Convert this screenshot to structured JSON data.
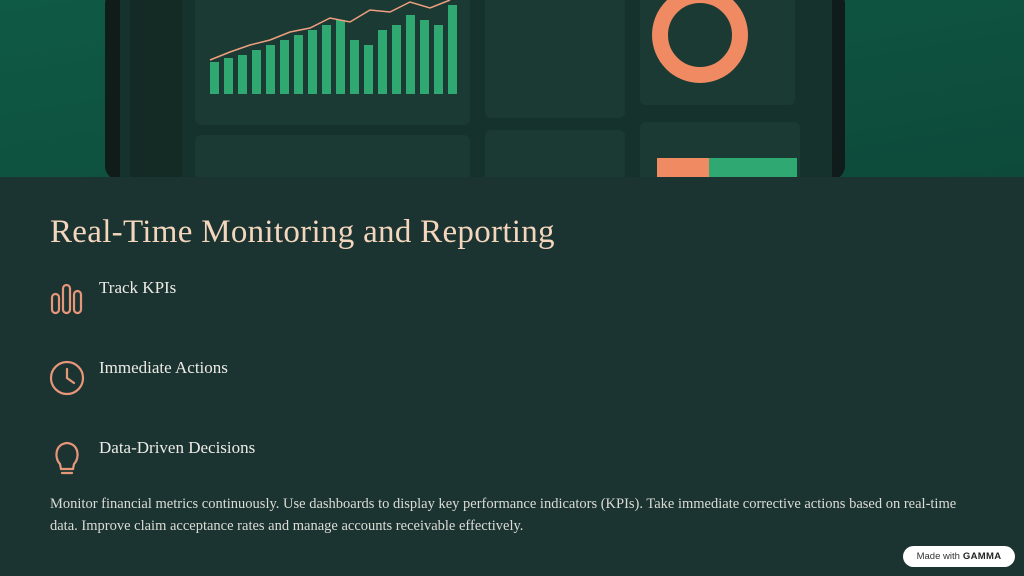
{
  "title": "Real-Time Monitoring and Reporting",
  "items": [
    {
      "label": "Track KPIs"
    },
    {
      "label": "Immediate Actions"
    },
    {
      "label": "Data-Driven Decisions"
    }
  ],
  "body": "Monitor financial metrics continuously. Use dashboards to display key performance indicators (KPIs). Take immediate corrective actions based on real-time data. Improve claim acceptance rates and manage accounts receivable effectively.",
  "badge": {
    "prefix": "Made with",
    "brand": "GAMMA"
  }
}
